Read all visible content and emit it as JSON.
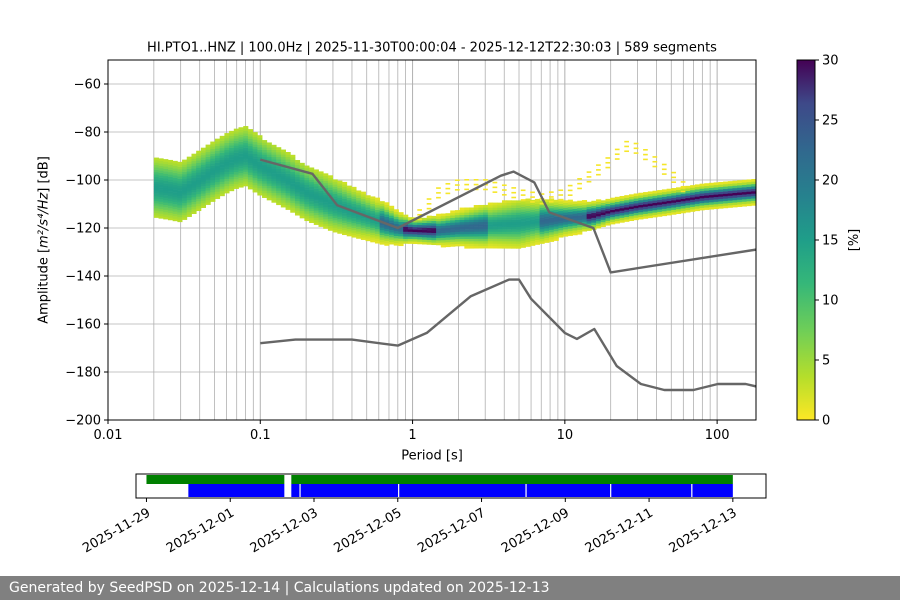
{
  "chart_data": [
    {
      "type": "heatmap",
      "title": "HI.PTO1..HNZ | 100.0Hz | 2025-11-30T00:00:04 - 2025-12-12T22:30:03 | 589 segments",
      "xlabel": "Period [s]",
      "ylabel_main": "Amplitude [",
      "ylabel_math": "m²/s⁴/Hz",
      "ylabel_end": "] [dB]",
      "x_scale": "log",
      "xlim": [
        0.01,
        180
      ],
      "ylim": [
        -200,
        -50
      ],
      "x_ticks": [
        {
          "value": 0.01,
          "label": "0.01"
        },
        {
          "value": 0.1,
          "label": "0.1"
        },
        {
          "value": 1,
          "label": "1"
        },
        {
          "value": 10,
          "label": "10"
        },
        {
          "value": 100,
          "label": "100"
        }
      ],
      "y_ticks": [
        {
          "value": -60,
          "label": "−60"
        },
        {
          "value": -80,
          "label": "−80"
        },
        {
          "value": -100,
          "label": "−100"
        },
        {
          "value": -120,
          "label": "−120"
        },
        {
          "value": -140,
          "label": "−140"
        },
        {
          "value": -160,
          "label": "−160"
        },
        {
          "value": -180,
          "label": "−180"
        },
        {
          "value": -200,
          "label": "−200"
        }
      ],
      "grid": true,
      "colorbar": {
        "label": "[%]",
        "colormap": "viridis_r",
        "range": [
          0,
          30
        ],
        "ticks": [
          {
            "value": 0,
            "label": "0"
          },
          {
            "value": 5,
            "label": "5"
          },
          {
            "value": 10,
            "label": "10"
          },
          {
            "value": 15,
            "label": "15"
          },
          {
            "value": 20,
            "label": "20"
          },
          {
            "value": 25,
            "label": "25"
          },
          {
            "value": 30,
            "label": "30"
          }
        ]
      },
      "density": {
        "period_range": [
          0.02,
          180
        ],
        "mode_db": [
          [
            0.02,
            -103
          ],
          [
            0.025,
            -104
          ],
          [
            0.03,
            -105
          ],
          [
            0.04,
            -100
          ],
          [
            0.05,
            -96
          ],
          [
            0.06,
            -93
          ],
          [
            0.07,
            -91
          ],
          [
            0.08,
            -90
          ],
          [
            0.1,
            -94
          ],
          [
            0.15,
            -100
          ],
          [
            0.2,
            -105
          ],
          [
            0.3,
            -110
          ],
          [
            0.4,
            -113
          ],
          [
            0.6,
            -117
          ],
          [
            0.8,
            -120
          ],
          [
            1,
            -121
          ],
          [
            1.5,
            -121
          ],
          [
            2,
            -120
          ],
          [
            3,
            -119
          ],
          [
            5,
            -118
          ],
          [
            7,
            -117
          ],
          [
            10,
            -116
          ],
          [
            15,
            -115
          ],
          [
            20,
            -113
          ],
          [
            30,
            -111
          ],
          [
            50,
            -109
          ],
          [
            80,
            -107
          ],
          [
            120,
            -106
          ],
          [
            180,
            -105
          ]
        ],
        "spread_db": [
          [
            0.02,
            7
          ],
          [
            0.05,
            7
          ],
          [
            0.1,
            7
          ],
          [
            0.3,
            6
          ],
          [
            0.6,
            4
          ],
          [
            1,
            2
          ],
          [
            2,
            3
          ],
          [
            5,
            5
          ],
          [
            10,
            3
          ],
          [
            20,
            2
          ],
          [
            50,
            2
          ],
          [
            180,
            2
          ]
        ],
        "secondary_mode_db": [
          [
            1,
            -118
          ],
          [
            1.5,
            -105
          ],
          [
            2,
            -102
          ],
          [
            3,
            -102
          ],
          [
            5,
            -106
          ],
          [
            7,
            -108
          ],
          [
            10,
            -106
          ],
          [
            15,
            -98
          ],
          [
            20,
            -92
          ],
          [
            25,
            -86
          ],
          [
            30,
            -87
          ],
          [
            40,
            -93
          ],
          [
            50,
            -98
          ],
          [
            60,
            -103
          ]
        ]
      },
      "series": [
        {
          "values": [
            [
              0.1,
              -168
            ],
            [
              0.17,
              -166.5
            ],
            [
              0.2,
              -166.5
            ],
            [
              0.4,
              -166.5
            ],
            [
              0.8,
              -169
            ],
            [
              1.24,
              -163.7
            ],
            [
              2.4,
              -148.5
            ],
            [
              4.3,
              -141.5
            ],
            [
              5.0,
              -141.5
            ],
            [
              6.0,
              -149.5
            ],
            [
              10.0,
              -163.7
            ],
            [
              12.0,
              -166.2
            ],
            [
              15.6,
              -162.1
            ],
            [
              21.9,
              -177.5
            ],
            [
              31.6,
              -185
            ],
            [
              45.0,
              -187.5
            ],
            [
              70.0,
              -187.5
            ],
            [
              101.0,
              -185
            ],
            [
              154.0,
              -185
            ],
            [
              180,
              -186
            ]
          ]
        },
        {
          "values": [
            [
              0.1,
              -91.5
            ],
            [
              0.22,
              -97.4
            ],
            [
              0.32,
              -110.5
            ],
            [
              0.8,
              -120
            ],
            [
              3.8,
              -98.2
            ],
            [
              4.6,
              -96.5
            ],
            [
              6.3,
              -101
            ],
            [
              7.9,
              -113.5
            ],
            [
              15.4,
              -120
            ],
            [
              20.0,
              -138.5
            ],
            [
              180,
              -129
            ]
          ]
        }
      ]
    },
    {
      "type": "timeline",
      "x_ticks": [
        {
          "value": "2025-11-29",
          "label": "2025-11-29"
        },
        {
          "value": "2025-12-01",
          "label": "2025-12-01"
        },
        {
          "value": "2025-12-03",
          "label": "2025-12-03"
        },
        {
          "value": "2025-12-05",
          "label": "2025-12-05"
        },
        {
          "value": "2025-12-07",
          "label": "2025-12-07"
        },
        {
          "value": "2025-12-09",
          "label": "2025-12-09"
        },
        {
          "value": "2025-12-11",
          "label": "2025-12-11"
        },
        {
          "value": "2025-12-13",
          "label": "2025-12-13"
        }
      ],
      "x_range": [
        "2025-11-28T18:00:00",
        "2025-12-13T19:00:00"
      ],
      "bars": [
        {
          "row": "top",
          "color": "#008000",
          "start": "2025-11-29T00:00:00",
          "end": "2025-12-02T07:00:00"
        },
        {
          "row": "top",
          "color": "#008000",
          "start": "2025-12-02T11:00:00",
          "end": "2025-12-13T00:00:00"
        },
        {
          "row": "bottom",
          "color": "#0000ff",
          "start": "2025-11-30T00:00:00",
          "end": "2025-12-02T07:00:00"
        },
        {
          "row": "bottom",
          "color": "#0000ff",
          "start": "2025-12-02T11:00:00",
          "end": "2025-12-13T00:00:00"
        }
      ],
      "gaps": [
        "2025-12-02T16:00:00",
        "2025-12-05T00:30:00",
        "2025-12-08T01:30:00",
        "2025-12-10T02:00:00",
        "2025-12-12T00:30:00"
      ]
    }
  ],
  "footer": {
    "text": "Generated by SeedPSD on 2025-12-14 | Calculations updated on 2025-12-13"
  }
}
